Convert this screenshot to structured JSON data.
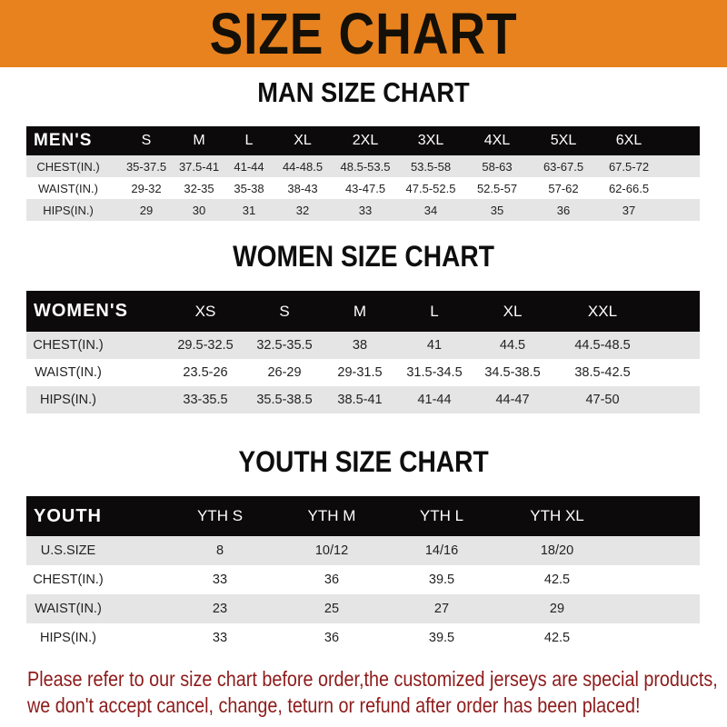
{
  "banner": {
    "title": "SIZE CHART",
    "color": "#e8821e"
  },
  "men": {
    "title": "MAN SIZE CHART",
    "header": [
      "MEN'S",
      "S",
      "M",
      "L",
      "XL",
      "2XL",
      "3XL",
      "4XL",
      "5XL",
      "6XL"
    ],
    "rows": [
      [
        "CHEST(IN.)",
        "35-37.5",
        "37.5-41",
        "41-44",
        "44-48.5",
        "48.5-53.5",
        "53.5-58",
        "58-63",
        "63-67.5",
        "67.5-72"
      ],
      [
        "WAIST(IN.)",
        "29-32",
        "32-35",
        "35-38",
        "38-43",
        "43-47.5",
        "47.5-52.5",
        "52.5-57",
        "57-62",
        "62-66.5"
      ],
      [
        "HIPS(IN.)",
        "29",
        "30",
        "31",
        "32",
        "33",
        "34",
        "35",
        "36",
        "37"
      ]
    ]
  },
  "women": {
    "title": "WOMEN SIZE CHART",
    "header": [
      "WOMEN'S",
      "XS",
      "S",
      "M",
      "L",
      "XL",
      "XXL"
    ],
    "rows": [
      [
        "CHEST(IN.)",
        "29.5-32.5",
        "32.5-35.5",
        "38",
        "41",
        "44.5",
        "44.5-48.5"
      ],
      [
        "WAIST(IN.)",
        "23.5-26",
        "26-29",
        "29-31.5",
        "31.5-34.5",
        "34.5-38.5",
        "38.5-42.5"
      ],
      [
        "HIPS(IN.)",
        "33-35.5",
        "35.5-38.5",
        "38.5-41",
        "41-44",
        "44-47",
        "47-50"
      ]
    ]
  },
  "youth": {
    "title": "YOUTH SIZE CHART",
    "header": [
      "YOUTH",
      "YTH S",
      "YTH M",
      "YTH L",
      "YTH XL"
    ],
    "rows": [
      [
        "U.S.SIZE",
        "8",
        "10/12",
        "14/16",
        "18/20"
      ],
      [
        "CHEST(IN.)",
        "33",
        "36",
        "39.5",
        "42.5"
      ],
      [
        "WAIST(IN.)",
        "23",
        "25",
        "27",
        "29"
      ],
      [
        "HIPS(IN.)",
        "33",
        "36",
        "39.5",
        "42.5"
      ]
    ]
  },
  "note": {
    "line1": "Please refer to our size chart before order,the customized jerseys are special products,",
    "line2": "we don't accept cancel, change, teturn or refund after order has been placed!",
    "color": "#8e1b1b"
  }
}
